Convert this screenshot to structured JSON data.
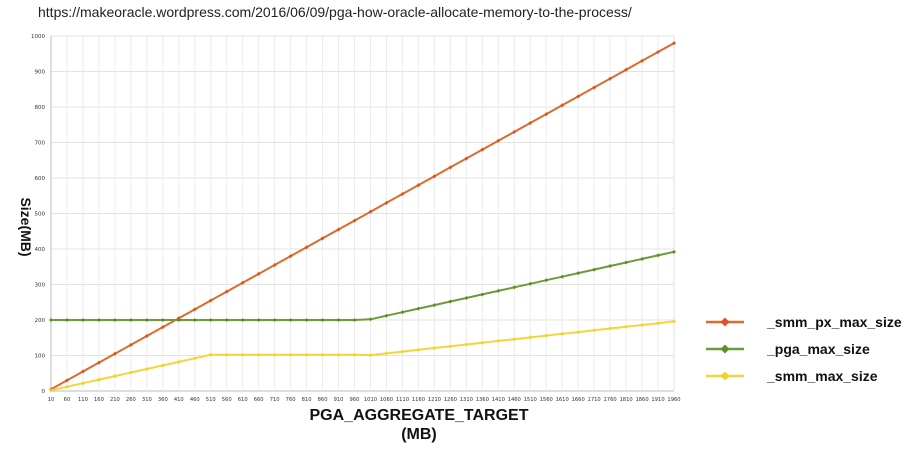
{
  "source_url": "https://makeoracle.wordpress.com/2016/06/09/pga-how-oracle-allocate-memory-to-the-process/",
  "chart_data": {
    "type": "line",
    "xlabel_line1": "PGA_AGGREGATE_TARGET",
    "xlabel_line2": "(MB)",
    "ylabel": "Size(MB)",
    "ylim": [
      0,
      1000
    ],
    "yticks": [
      0,
      100,
      200,
      300,
      400,
      500,
      600,
      700,
      800,
      900,
      1000
    ],
    "x": [
      10,
      60,
      110,
      160,
      210,
      260,
      310,
      360,
      410,
      460,
      510,
      560,
      610,
      660,
      710,
      760,
      810,
      860,
      910,
      960,
      1010,
      1060,
      1110,
      1160,
      1210,
      1260,
      1310,
      1360,
      1410,
      1460,
      1510,
      1560,
      1610,
      1660,
      1710,
      1760,
      1810,
      1860,
      1910,
      1960
    ],
    "grid": true,
    "legend_position": "right",
    "series": [
      {
        "name": "_smm_px_max_size",
        "color": "#e06a2c",
        "marker_color": "#d9542a",
        "values": [
          5,
          30,
          55,
          80,
          105,
          130,
          155,
          180,
          205,
          230,
          255,
          280,
          305,
          330,
          355,
          380,
          405,
          430,
          455,
          480,
          505,
          530,
          555,
          580,
          605,
          630,
          655,
          680,
          705,
          730,
          755,
          780,
          805,
          830,
          855,
          880,
          905,
          930,
          955,
          980
        ]
      },
      {
        "name": "_pga_max_size",
        "color": "#6e9a3a",
        "marker_color": "#5f8c2e",
        "values": [
          200,
          200,
          200,
          200,
          200,
          200,
          200,
          200,
          200,
          200,
          200,
          200,
          200,
          200,
          200,
          200,
          200,
          200,
          200,
          200,
          202,
          212,
          222,
          232,
          242,
          252,
          262,
          272,
          282,
          292,
          302,
          312,
          322,
          332,
          342,
          352,
          362,
          372,
          382,
          392
        ]
      },
      {
        "name": "_smm_max_size",
        "color": "#f0d640",
        "marker_color": "#f2d22a",
        "values": [
          2,
          12,
          22,
          32,
          42,
          52,
          62,
          72,
          82,
          92,
          102,
          102,
          102,
          102,
          102,
          102,
          102,
          102,
          102,
          102,
          101,
          106,
          111,
          116,
          121,
          126,
          131,
          136,
          141,
          146,
          151,
          156,
          161,
          166,
          171,
          176,
          181,
          186,
          191,
          196
        ]
      }
    ]
  }
}
